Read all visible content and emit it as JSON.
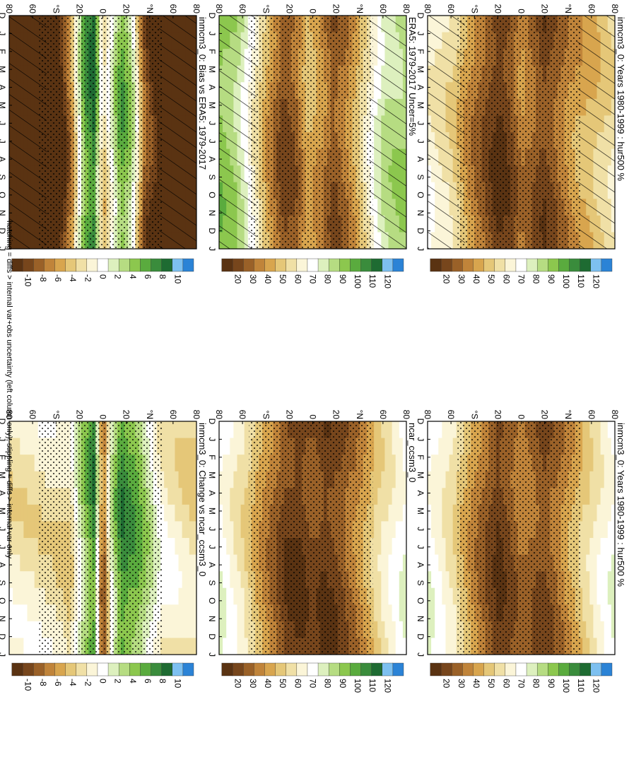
{
  "figure": {
    "orientation": "rotated 90 degrees clockwise (landscape figure on portrait page)",
    "footnote": "hatching = diffs > internal var+obs uncertainty (left column only); stippling = diffs > internal var only"
  },
  "colorbars": {
    "absolute": {
      "labels": [
        "120",
        "110",
        "100",
        "90",
        "80",
        "70",
        "60",
        "50",
        "40",
        "30",
        "20"
      ],
      "colors": [
        "#2b83d6",
        "#7dc0f0",
        "#1e6b32",
        "#3a8c3c",
        "#5aab3e",
        "#8cc74e",
        "#b6dc82",
        "#ddf0be",
        "#ffffff",
        "#fbf5d8",
        "#f0e0a6",
        "#e5c778",
        "#d8a54e",
        "#c0843a",
        "#9a6128",
        "#77461c",
        "#5a3312"
      ]
    },
    "difference": {
      "labels": [
        "10",
        "8",
        "6",
        "4",
        "2",
        "0",
        "-2",
        "-4",
        "-6",
        "-8",
        "-10"
      ],
      "colors": [
        "#2b83d6",
        "#7dc0f0",
        "#1e6b32",
        "#3a8c3c",
        "#5aab3e",
        "#8cc74e",
        "#b6dc82",
        "#ddf0be",
        "#ffffff",
        "#fbf5d8",
        "#f0e0a6",
        "#e5c778",
        "#d8a54e",
        "#c0843a",
        "#9a6128",
        "#77461c",
        "#5a3312"
      ]
    }
  },
  "chart_data": [
    {
      "id": "p1",
      "type": "heatmap",
      "title": "inmcm3_0: Years 1980-1999 : hur500 %",
      "x_ticks": [
        "D",
        "J",
        "F",
        "M",
        "A",
        "M",
        "J",
        "J",
        "A",
        "S",
        "O",
        "N",
        "D",
        "J"
      ],
      "y_ticks": [
        "80",
        "60",
        "°N",
        "20",
        "0",
        "20",
        "°S",
        "60",
        "80"
      ],
      "colorbar": "absolute",
      "hatching": true,
      "stippling": true,
      "bands": [
        [
          -90,
          58
        ],
        [
          -68,
          48
        ],
        [
          -50,
          42
        ],
        [
          -35,
          32
        ],
        [
          -22,
          24
        ],
        [
          -10,
          32
        ],
        [
          0,
          38
        ],
        [
          10,
          26
        ],
        [
          22,
          20
        ],
        [
          35,
          30
        ],
        [
          50,
          40
        ],
        [
          65,
          55
        ],
        [
          90,
          65
        ]
      ]
    },
    {
      "id": "p2",
      "type": "heatmap",
      "title": "inmcm3_0: Years 1980-1999 : hur500 %",
      "x_ticks": [
        "D",
        "J",
        "F",
        "M",
        "A",
        "M",
        "J",
        "J",
        "A",
        "S",
        "O",
        "N",
        "D",
        "J"
      ],
      "y_ticks": [
        "80",
        "60",
        "°N",
        "20",
        "0",
        "20",
        "°S",
        "60",
        "80"
      ],
      "colorbar": "absolute",
      "hatching": false,
      "stippling": true,
      "bands": [
        [
          -90,
          72
        ],
        [
          -68,
          58
        ],
        [
          -50,
          45
        ],
        [
          -35,
          34
        ],
        [
          -22,
          26
        ],
        [
          -10,
          32
        ],
        [
          0,
          36
        ],
        [
          10,
          28
        ],
        [
          22,
          22
        ],
        [
          35,
          32
        ],
        [
          50,
          44
        ],
        [
          65,
          58
        ],
        [
          90,
          72
        ]
      ]
    },
    {
      "id": "p3",
      "type": "heatmap",
      "title": "ERA5: 1979-2017 Uncer=5%",
      "x_ticks": [
        "D",
        "J",
        "F",
        "M",
        "A",
        "M",
        "J",
        "J",
        "A",
        "S",
        "O",
        "N",
        "D",
        "J"
      ],
      "y_ticks": [
        "80",
        "60",
        "°N",
        "20",
        "0",
        "20",
        "°S",
        "60",
        "80"
      ],
      "colorbar": "absolute",
      "hatching": true,
      "stippling": true,
      "bands": [
        [
          -90,
          85
        ],
        [
          -70,
          80
        ],
        [
          -58,
          68
        ],
        [
          -45,
          50
        ],
        [
          -32,
          36
        ],
        [
          -20,
          28
        ],
        [
          -8,
          40
        ],
        [
          5,
          48
        ],
        [
          15,
          32
        ],
        [
          28,
          26
        ],
        [
          42,
          42
        ],
        [
          56,
          62
        ],
        [
          72,
          82
        ],
        [
          90,
          90
        ]
      ]
    },
    {
      "id": "p4",
      "type": "heatmap",
      "title": "ncar_ccsm3_0",
      "x_ticks": [
        "D",
        "J",
        "F",
        "M",
        "A",
        "M",
        "J",
        "J",
        "A",
        "S",
        "O",
        "N",
        "D",
        "J"
      ],
      "y_ticks": [
        "80",
        "60",
        "°N",
        "20",
        "0",
        "20",
        "°S",
        "60",
        "80"
      ],
      "colorbar": "absolute",
      "hatching": false,
      "stippling": true,
      "bands": [
        [
          -90,
          72
        ],
        [
          -70,
          60
        ],
        [
          -55,
          48
        ],
        [
          -40,
          36
        ],
        [
          -25,
          26
        ],
        [
          -12,
          22
        ],
        [
          0,
          28
        ],
        [
          12,
          22
        ],
        [
          25,
          24
        ],
        [
          40,
          36
        ],
        [
          55,
          48
        ],
        [
          70,
          60
        ],
        [
          90,
          72
        ]
      ]
    },
    {
      "id": "p5",
      "type": "heatmap",
      "title": "inmcm3_0: Bias vs ERA5: 1979-2017",
      "x_ticks": [
        "D",
        "J",
        "F",
        "M",
        "A",
        "M",
        "J",
        "J",
        "A",
        "S",
        "O",
        "N",
        "D",
        "J"
      ],
      "y_ticks": [
        "80",
        "60",
        "°N",
        "20",
        "0",
        "20",
        "°S",
        "60",
        "80"
      ],
      "colorbar": "difference",
      "hatching": true,
      "stippling": true,
      "bands": [
        [
          -90,
          -12
        ],
        [
          -55,
          -12
        ],
        [
          -40,
          -8
        ],
        [
          -28,
          2
        ],
        [
          -18,
          5
        ],
        [
          -8,
          0
        ],
        [
          0,
          -4
        ],
        [
          8,
          7
        ],
        [
          18,
          5
        ],
        [
          30,
          -6
        ],
        [
          42,
          -12
        ],
        [
          90,
          -12
        ]
      ]
    },
    {
      "id": "p6",
      "type": "heatmap",
      "title": "inmcm3_0: Change vs ncar_ccsm3_0",
      "x_ticks": [
        "D",
        "J",
        "F",
        "M",
        "A",
        "M",
        "J",
        "J",
        "A",
        "S",
        "O",
        "N",
        "D",
        "J"
      ],
      "y_ticks": [
        "80",
        "60",
        "°N",
        "20",
        "0",
        "20",
        "°S",
        "60",
        "80"
      ],
      "colorbar": "difference",
      "hatching": false,
      "stippling": true,
      "bands": [
        [
          -90,
          -3
        ],
        [
          -55,
          -1
        ],
        [
          -35,
          4
        ],
        [
          -18,
          6
        ],
        [
          -8,
          1
        ],
        [
          0,
          -9
        ],
        [
          8,
          6
        ],
        [
          18,
          3
        ],
        [
          32,
          -3
        ],
        [
          50,
          -2
        ],
        [
          90,
          -2
        ]
      ]
    }
  ]
}
